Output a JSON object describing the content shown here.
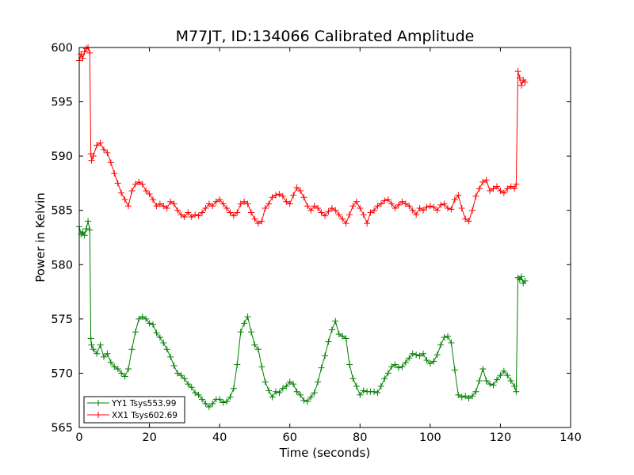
{
  "chart_data": {
    "type": "line",
    "title": "M77JT, ID:134066 Calibrated Amplitude",
    "xlabel": "Time (seconds)",
    "ylabel": "Power in Kelvin",
    "xlim": [
      0,
      140
    ],
    "ylim": [
      565,
      600
    ],
    "xticks": [
      "0",
      "20",
      "40",
      "60",
      "80",
      "100",
      "120",
      "140"
    ],
    "yticks": [
      "565",
      "570",
      "575",
      "580",
      "585",
      "590",
      "595",
      "600"
    ],
    "grid": false,
    "legend_position": "lower-left",
    "series": [
      {
        "name": "YY1 Tsys553.99",
        "color": "#008000",
        "marker": "plus",
        "x": [
          0,
          0.5,
          1,
          1.5,
          2,
          2.5,
          3,
          3.3,
          3.5,
          4,
          5,
          6,
          7,
          8,
          9,
          10,
          11,
          12,
          13,
          14,
          15,
          16,
          17,
          18,
          19,
          20,
          21,
          22,
          23,
          24,
          25,
          26,
          27,
          28,
          29,
          30,
          31,
          32,
          33,
          34,
          35,
          36,
          37,
          38,
          39,
          40,
          41,
          42,
          43,
          44,
          45,
          46,
          47,
          48,
          49,
          50,
          51,
          52,
          53,
          54,
          55,
          56,
          57,
          58,
          59,
          60,
          61,
          62,
          63,
          64,
          65,
          66,
          67,
          68,
          69,
          70,
          71,
          72,
          73,
          74,
          75,
          76,
          77,
          78,
          79,
          80,
          81,
          82,
          83,
          84,
          85,
          86,
          87,
          88,
          89,
          90,
          91,
          92,
          93,
          94,
          95,
          96,
          97,
          98,
          99,
          100,
          101,
          102,
          103,
          104,
          105,
          106,
          107,
          108,
          109,
          110,
          111,
          112,
          113,
          114,
          115,
          116,
          117,
          118,
          119,
          120,
          121,
          122,
          123,
          124,
          124.5,
          125,
          125.5,
          126,
          126.5,
          127
        ],
        "y": [
          583.5,
          582.8,
          583.0,
          582.7,
          583.3,
          584.0,
          583.2,
          573.2,
          572.6,
          572.2,
          571.8,
          572.6,
          571.5,
          571.8,
          571.0,
          570.6,
          570.4,
          570.0,
          569.7,
          570.4,
          572.2,
          573.8,
          575.0,
          575.2,
          575.0,
          574.6,
          574.5,
          573.7,
          573.3,
          572.8,
          572.2,
          571.5,
          570.7,
          570.0,
          569.8,
          569.5,
          569.0,
          568.7,
          568.2,
          568.0,
          567.6,
          567.2,
          566.9,
          567.2,
          567.6,
          567.6,
          567.3,
          567.4,
          567.8,
          568.6,
          570.8,
          573.8,
          574.6,
          575.2,
          573.8,
          572.6,
          572.2,
          570.6,
          569.2,
          568.4,
          567.8,
          568.3,
          568.2,
          568.6,
          568.8,
          569.2,
          569.0,
          568.3,
          568.0,
          567.5,
          567.4,
          567.8,
          568.2,
          569.2,
          570.5,
          571.6,
          572.9,
          574.0,
          574.8,
          573.6,
          573.4,
          573.2,
          570.8,
          569.5,
          568.8,
          568.0,
          568.4,
          568.3,
          568.3,
          568.3,
          568.2,
          568.8,
          569.5,
          570.0,
          570.6,
          570.8,
          570.5,
          570.6,
          571.0,
          571.4,
          571.8,
          571.7,
          571.6,
          571.8,
          571.2,
          570.9,
          571.1,
          571.7,
          572.6,
          573.3,
          573.4,
          572.8,
          570.3,
          568.0,
          567.8,
          567.9,
          567.7,
          567.9,
          568.3,
          569.3,
          570.4,
          569.3,
          569.0,
          568.9,
          569.4,
          569.8,
          570.2,
          569.8,
          569.3,
          568.8,
          568.3,
          578.8,
          578.6,
          578.9,
          578.3,
          578.5
        ],
        "points": [
          [
            0,
            583.5
          ],
          [
            0.5,
            582.8
          ],
          [
            1,
            583.0
          ],
          [
            1.5,
            582.7
          ],
          [
            2,
            583.3
          ],
          [
            2.5,
            584.0
          ],
          [
            3,
            583.2
          ]
        ]
      },
      {
        "name": "XX1 Tsys602.69",
        "color": "#ff0000",
        "marker": "plus",
        "x": [
          0,
          0.5,
          1,
          1.5,
          2,
          2.5,
          3,
          3.3,
          3.5,
          4,
          5,
          6,
          7,
          8,
          9,
          10,
          11,
          12,
          13,
          14,
          15,
          16,
          17,
          18,
          19,
          20,
          21,
          22,
          23,
          24,
          25,
          26,
          27,
          28,
          29,
          30,
          31,
          32,
          33,
          34,
          35,
          36,
          37,
          38,
          39,
          40,
          41,
          42,
          43,
          44,
          45,
          46,
          47,
          48,
          49,
          50,
          51,
          52,
          53,
          54,
          55,
          56,
          57,
          58,
          59,
          60,
          61,
          62,
          63,
          64,
          65,
          66,
          67,
          68,
          69,
          70,
          71,
          72,
          73,
          74,
          75,
          76,
          77,
          78,
          79,
          80,
          81,
          82,
          83,
          84,
          85,
          86,
          87,
          88,
          89,
          90,
          91,
          92,
          93,
          94,
          95,
          96,
          97,
          98,
          99,
          100,
          101,
          102,
          103,
          104,
          105,
          106,
          107,
          108,
          109,
          110,
          111,
          112,
          113,
          114,
          115,
          116,
          117,
          118,
          119,
          120,
          121,
          122,
          123,
          124,
          124.5,
          125,
          125.5,
          126,
          126.5,
          127
        ],
        "y": [
          598.8,
          599.4,
          599.0,
          599.6,
          599.9,
          600.0,
          599.5,
          590.2,
          589.6,
          590.0,
          591.0,
          591.2,
          590.6,
          590.3,
          589.4,
          588.4,
          587.5,
          586.6,
          586.0,
          585.4,
          586.8,
          587.4,
          587.6,
          587.4,
          586.8,
          586.5,
          586.0,
          585.4,
          585.6,
          585.4,
          585.2,
          585.8,
          585.6,
          585.0,
          584.6,
          584.4,
          584.8,
          584.4,
          584.6,
          584.5,
          584.8,
          585.2,
          585.6,
          585.4,
          585.8,
          586.0,
          585.6,
          585.2,
          584.8,
          584.5,
          584.8,
          585.6,
          585.8,
          585.6,
          584.8,
          584.2,
          583.8,
          584.0,
          585.2,
          585.6,
          586.2,
          586.4,
          586.5,
          586.3,
          585.8,
          585.6,
          586.4,
          587.1,
          586.8,
          586.2,
          585.4,
          585.0,
          585.4,
          585.2,
          584.8,
          584.5,
          584.9,
          585.2,
          585.0,
          584.6,
          584.2,
          583.8,
          584.6,
          585.4,
          585.8,
          585.2,
          584.6,
          583.8,
          584.8,
          585.0,
          585.4,
          585.6,
          585.9,
          586.0,
          585.6,
          585.2,
          585.5,
          585.8,
          585.6,
          585.4,
          585.0,
          584.6,
          585.2,
          585.0,
          585.3,
          585.4,
          585.3,
          585.0,
          585.5,
          585.6,
          585.2,
          585.1,
          586.0,
          586.4,
          585.2,
          584.2,
          584.0,
          585.0,
          586.3,
          587.0,
          587.6,
          587.8,
          586.8,
          587.0,
          587.2,
          586.8,
          586.6,
          587.0,
          587.2,
          587.0,
          587.4,
          597.8,
          597.2,
          596.5,
          597.0,
          596.8
        ],
        "points": []
      }
    ]
  }
}
